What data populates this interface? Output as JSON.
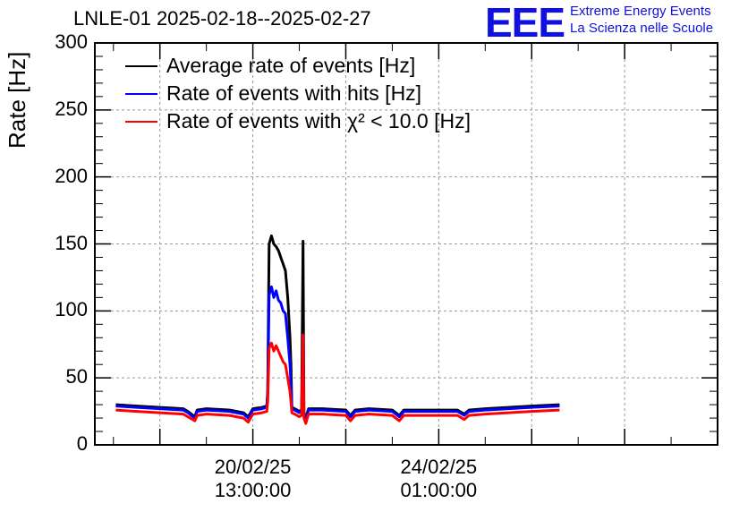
{
  "title": "LNLE-01 2025-02-18--2025-02-27",
  "logo": {
    "mark": "EEE",
    "line1": "Extreme Energy Events",
    "line2": "La Scienza nelle Scuole",
    "color": "#1010e0"
  },
  "chart_data": {
    "type": "line",
    "ylabel": "Rate [Hz]",
    "ylim": [
      0,
      300
    ],
    "yticks": [
      0,
      50,
      100,
      150,
      200,
      250,
      300
    ],
    "xlim_days": [
      -3.4,
      10.0
    ],
    "xticks": [
      {
        "date": "20/02/25",
        "time": "13:00:00",
        "day": 0
      },
      {
        "date": "24/02/25",
        "time": "01:00:00",
        "day": 4
      }
    ],
    "grid": true,
    "legend_position": "top-left",
    "series": [
      {
        "name": "Average rate of events [Hz]",
        "color": "#000000",
        "x": [
          -2.95,
          -2.5,
          -2.0,
          -1.5,
          -1.4,
          -1.25,
          -1.2,
          -1.0,
          -0.5,
          -0.2,
          -0.1,
          0.0,
          0.2,
          0.3,
          0.32,
          0.35,
          0.4,
          0.45,
          0.5,
          0.55,
          0.6,
          0.65,
          0.7,
          0.75,
          0.8,
          0.82,
          0.84,
          0.9,
          0.95,
          1.0,
          1.05,
          1.08,
          1.1,
          1.14,
          1.18,
          1.2,
          1.5,
          2.0,
          2.1,
          2.2,
          2.5,
          3.0,
          3.15,
          3.25,
          3.5,
          4.0,
          4.4,
          4.55,
          4.65,
          5.0,
          5.5,
          6.0,
          6.6
        ],
        "y": [
          30,
          29,
          28,
          27,
          25,
          21,
          26,
          27,
          26,
          24,
          21,
          27,
          28,
          29,
          40,
          150,
          156,
          150,
          148,
          145,
          140,
          135,
          130,
          110,
          80,
          60,
          28,
          27,
          26,
          25,
          26,
          152,
          24,
          20,
          25,
          27,
          27,
          26,
          22,
          26,
          27,
          26,
          22,
          26,
          26,
          26,
          26,
          23,
          26,
          27,
          28,
          29,
          30
        ]
      },
      {
        "name": "Rate of events with hits [Hz]",
        "color": "#0000ff",
        "x": [
          -2.95,
          -2.5,
          -2.0,
          -1.5,
          -1.4,
          -1.25,
          -1.2,
          -1.0,
          -0.5,
          -0.2,
          -0.1,
          0.0,
          0.2,
          0.3,
          0.32,
          0.35,
          0.4,
          0.45,
          0.5,
          0.55,
          0.6,
          0.65,
          0.7,
          0.75,
          0.8,
          0.82,
          0.84,
          0.9,
          0.95,
          1.0,
          1.05,
          1.08,
          1.1,
          1.14,
          1.18,
          1.2,
          1.5,
          2.0,
          2.1,
          2.2,
          2.5,
          3.0,
          3.15,
          3.25,
          3.5,
          4.0,
          4.4,
          4.55,
          4.65,
          5.0,
          5.5,
          6.0,
          6.6
        ],
        "y": [
          29,
          28,
          27,
          26,
          24,
          20,
          25,
          26,
          25,
          23,
          20,
          26,
          27,
          28,
          38,
          112,
          118,
          110,
          115,
          108,
          106,
          100,
          98,
          80,
          60,
          45,
          27,
          26,
          25,
          24,
          25,
          82,
          23,
          19,
          24,
          26,
          26,
          25,
          21,
          25,
          26,
          25,
          21,
          25,
          25,
          25,
          25,
          22,
          25,
          26,
          27,
          28,
          29
        ]
      },
      {
        "name": "Rate of events with χ² < 10.0 [Hz]",
        "color": "#ff0000",
        "x": [
          -2.95,
          -2.5,
          -2.0,
          -1.5,
          -1.4,
          -1.25,
          -1.2,
          -1.0,
          -0.5,
          -0.2,
          -0.1,
          0.0,
          0.2,
          0.3,
          0.32,
          0.35,
          0.4,
          0.45,
          0.5,
          0.55,
          0.6,
          0.65,
          0.7,
          0.75,
          0.8,
          0.82,
          0.84,
          0.9,
          0.95,
          1.0,
          1.05,
          1.08,
          1.1,
          1.14,
          1.18,
          1.2,
          1.5,
          2.0,
          2.1,
          2.2,
          2.5,
          3.0,
          3.15,
          3.25,
          3.5,
          4.0,
          4.4,
          4.55,
          4.65,
          5.0,
          5.5,
          6.0,
          6.6
        ],
        "y": [
          26,
          25,
          24,
          23,
          21,
          18,
          22,
          23,
          22,
          20,
          17,
          23,
          24,
          25,
          32,
          72,
          76,
          70,
          74,
          70,
          66,
          62,
          60,
          50,
          40,
          32,
          24,
          23,
          22,
          21,
          22,
          82,
          20,
          16,
          21,
          23,
          23,
          22,
          18,
          22,
          23,
          22,
          18,
          22,
          22,
          22,
          22,
          19,
          22,
          23,
          24,
          25,
          26
        ]
      }
    ]
  }
}
